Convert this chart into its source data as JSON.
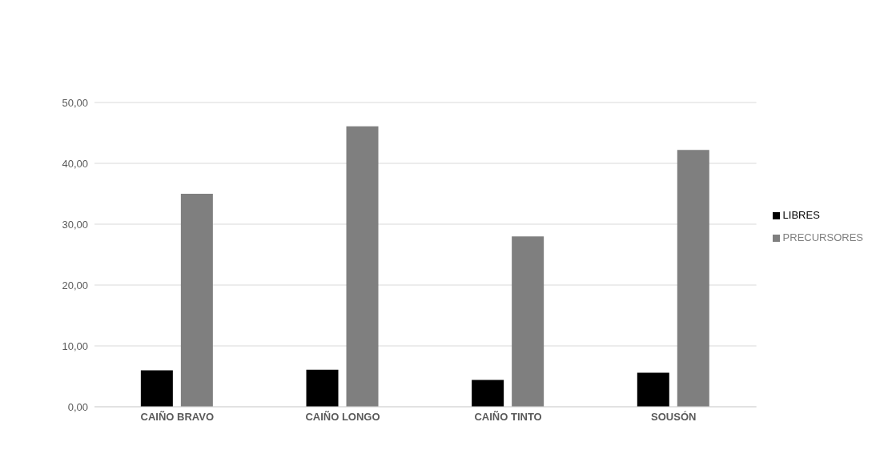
{
  "chart_data": {
    "type": "bar",
    "categories": [
      "CAIÑO BRAVO",
      "CAIÑO LONGO",
      "CAIÑO TINTO",
      "SOUSÓN"
    ],
    "series": [
      {
        "name": "LIBRES",
        "color": "#000000",
        "values": [
          6.0,
          6.1,
          4.4,
          5.6
        ]
      },
      {
        "name": "PRECURSORES",
        "color": "#7f7f7f",
        "values": [
          35.0,
          46.1,
          28.0,
          42.2
        ]
      }
    ],
    "ylim": [
      0,
      50
    ],
    "yticks": [
      {
        "value": 0,
        "label": "0,00"
      },
      {
        "value": 10,
        "label": "10,00"
      },
      {
        "value": 20,
        "label": "20,00"
      },
      {
        "value": 30,
        "label": "30,00"
      },
      {
        "value": 40,
        "label": "40,00"
      },
      {
        "value": 50,
        "label": "50,00"
      }
    ],
    "grid": "y",
    "legend": "right"
  }
}
